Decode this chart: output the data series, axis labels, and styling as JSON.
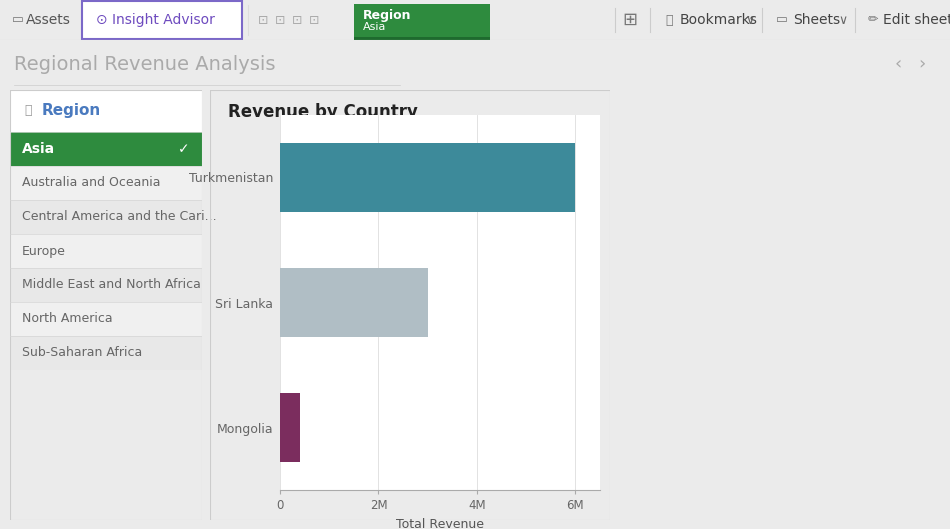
{
  "app_bg": "#ebebeb",
  "toolbar_bg": "#ffffff",
  "title_text": "Regional Revenue Analysis",
  "title_color": "#aaaaaa",
  "title_fontsize": 14,
  "filter_panel_bg": "#ffffff",
  "filter_label": "Region",
  "filter_items": [
    "Asia",
    "Australia and Oceania",
    "Central America and the Cari...",
    "Europe",
    "Middle East and North Africa",
    "North America",
    "Sub-Saharan Africa"
  ],
  "selected_item": "Asia",
  "selected_bg": "#2e8b3e",
  "selected_fg": "#ffffff",
  "unselected_bg": "#e8e8e8",
  "unselected_fg": "#666666",
  "chart_bg": "#ffffff",
  "chart_title": "Revenue by Country",
  "chart_title_fontsize": 12,
  "countries": [
    "Mongolia",
    "Sri Lanka",
    "Turkmenistan"
  ],
  "values": [
    400000,
    3000000,
    6000000
  ],
  "bar_colors": [
    "#7b2d5e",
    "#b0bec5",
    "#3d8a9a"
  ],
  "xlim": [
    0,
    6500000
  ],
  "xticks": [
    0,
    2000000,
    4000000,
    6000000
  ],
  "xtick_labels": [
    "0",
    "2M",
    "4M",
    "6M"
  ],
  "xlabel": "Total Revenue",
  "grid_color": "#dddddd",
  "tick_label_color": "#666666",
  "axis_label_color": "#555555",
  "bar_label_color": "#666666",
  "insight_advisor_color": "#6e4bbf",
  "region_btn_color": "#2e8b3e",
  "toolbar_border": "#cccccc",
  "tab_border": "#7b68c8"
}
